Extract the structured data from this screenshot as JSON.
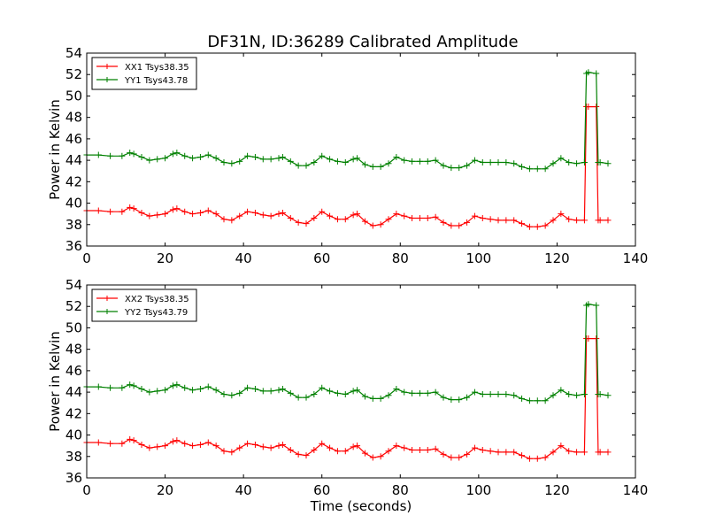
{
  "title": "DF31N, ID:36289 Calibrated Amplitude",
  "colors": {
    "XX": "#ff0000",
    "YY": "#008000",
    "axis": "#000000",
    "background": "#ffffff"
  },
  "chart_data": [
    {
      "type": "line",
      "panel": "top",
      "xlabel": "",
      "ylabel": "Power in Kelvin",
      "xlim": [
        0,
        140
      ],
      "ylim": [
        36,
        54
      ],
      "xticks": [
        0,
        20,
        40,
        60,
        80,
        100,
        120,
        140
      ],
      "yticks": [
        36,
        38,
        40,
        42,
        44,
        46,
        48,
        50,
        52,
        54
      ],
      "grid": false,
      "legend": "top-left",
      "marker": "+",
      "series": [
        {
          "name": "XX1 Tsys38.35",
          "color": "#ff0000",
          "x": [
            0,
            3,
            6,
            9,
            11,
            12,
            14,
            16,
            18,
            20,
            22,
            23,
            25,
            27,
            29,
            31,
            33,
            35,
            37,
            39,
            41,
            43,
            45,
            47,
            49,
            50,
            52,
            54,
            56,
            58,
            60,
            62,
            64,
            66,
            68,
            69,
            71,
            73,
            75,
            77,
            79,
            81,
            83,
            85,
            87,
            89,
            91,
            93,
            95,
            97,
            99,
            101,
            103,
            105,
            107,
            109,
            111,
            113,
            115,
            117,
            119,
            121,
            123,
            125,
            127,
            127.5,
            128,
            130,
            130.5,
            131,
            133
          ],
          "y": [
            39.3,
            39.3,
            39.2,
            39.2,
            39.6,
            39.5,
            39.1,
            38.8,
            38.9,
            39.0,
            39.4,
            39.5,
            39.2,
            39.0,
            39.1,
            39.3,
            39.0,
            38.5,
            38.4,
            38.8,
            39.2,
            39.1,
            38.9,
            38.8,
            39.0,
            39.1,
            38.6,
            38.2,
            38.1,
            38.6,
            39.2,
            38.8,
            38.5,
            38.5,
            38.9,
            39.0,
            38.3,
            37.9,
            38.0,
            38.5,
            39.0,
            38.8,
            38.6,
            38.6,
            38.6,
            38.7,
            38.2,
            37.9,
            37.9,
            38.2,
            38.8,
            38.6,
            38.5,
            38.4,
            38.4,
            38.4,
            38.1,
            37.8,
            37.8,
            37.9,
            38.4,
            39.0,
            38.5,
            38.4,
            38.4,
            49.0,
            49.0,
            49.0,
            38.4,
            38.4,
            38.4
          ]
        },
        {
          "name": "YY1 Tsys43.78",
          "color": "#008000",
          "x": [
            0,
            3,
            6,
            9,
            11,
            12,
            14,
            16,
            18,
            20,
            22,
            23,
            25,
            27,
            29,
            31,
            33,
            35,
            37,
            39,
            41,
            43,
            45,
            47,
            49,
            50,
            52,
            54,
            56,
            58,
            60,
            62,
            64,
            66,
            68,
            69,
            71,
            73,
            75,
            77,
            79,
            81,
            83,
            85,
            87,
            89,
            91,
            93,
            95,
            97,
            99,
            101,
            103,
            105,
            107,
            109,
            111,
            113,
            115,
            117,
            119,
            121,
            123,
            125,
            127,
            127.5,
            128,
            130,
            130.5,
            131,
            133
          ],
          "y": [
            44.5,
            44.5,
            44.4,
            44.4,
            44.7,
            44.6,
            44.3,
            44.0,
            44.1,
            44.2,
            44.6,
            44.7,
            44.4,
            44.2,
            44.3,
            44.5,
            44.2,
            43.8,
            43.7,
            43.9,
            44.4,
            44.3,
            44.1,
            44.1,
            44.2,
            44.3,
            43.9,
            43.5,
            43.5,
            43.8,
            44.4,
            44.1,
            43.9,
            43.8,
            44.1,
            44.2,
            43.6,
            43.4,
            43.4,
            43.7,
            44.3,
            44.0,
            43.9,
            43.9,
            43.9,
            44.0,
            43.5,
            43.3,
            43.3,
            43.5,
            44.0,
            43.8,
            43.8,
            43.8,
            43.8,
            43.7,
            43.4,
            43.2,
            43.2,
            43.2,
            43.7,
            44.2,
            43.8,
            43.7,
            43.8,
            52.1,
            52.2,
            52.1,
            43.8,
            43.8,
            43.7
          ]
        }
      ]
    },
    {
      "type": "line",
      "panel": "bottom",
      "xlabel": "Time (seconds)",
      "ylabel": "Power in Kelvin",
      "xlim": [
        0,
        140
      ],
      "ylim": [
        36,
        54
      ],
      "xticks": [
        0,
        20,
        40,
        60,
        80,
        100,
        120,
        140
      ],
      "yticks": [
        36,
        38,
        40,
        42,
        44,
        46,
        48,
        50,
        52,
        54
      ],
      "grid": false,
      "legend": "top-left",
      "marker": "+",
      "series": [
        {
          "name": "XX2 Tsys38.35",
          "color": "#ff0000",
          "x": [
            0,
            3,
            6,
            9,
            11,
            12,
            14,
            16,
            18,
            20,
            22,
            23,
            25,
            27,
            29,
            31,
            33,
            35,
            37,
            39,
            41,
            43,
            45,
            47,
            49,
            50,
            52,
            54,
            56,
            58,
            60,
            62,
            64,
            66,
            68,
            69,
            71,
            73,
            75,
            77,
            79,
            81,
            83,
            85,
            87,
            89,
            91,
            93,
            95,
            97,
            99,
            101,
            103,
            105,
            107,
            109,
            111,
            113,
            115,
            117,
            119,
            121,
            123,
            125,
            127,
            127.5,
            128,
            130,
            130.5,
            131,
            133
          ],
          "y": [
            39.3,
            39.3,
            39.2,
            39.2,
            39.6,
            39.5,
            39.1,
            38.8,
            38.9,
            39.0,
            39.4,
            39.5,
            39.2,
            39.0,
            39.1,
            39.3,
            39.0,
            38.5,
            38.4,
            38.8,
            39.2,
            39.1,
            38.9,
            38.8,
            39.0,
            39.1,
            38.6,
            38.2,
            38.1,
            38.6,
            39.2,
            38.8,
            38.5,
            38.5,
            38.9,
            39.0,
            38.3,
            37.9,
            38.0,
            38.5,
            39.0,
            38.8,
            38.6,
            38.6,
            38.6,
            38.7,
            38.2,
            37.9,
            37.9,
            38.2,
            38.8,
            38.6,
            38.5,
            38.4,
            38.4,
            38.4,
            38.1,
            37.8,
            37.8,
            37.9,
            38.4,
            39.0,
            38.5,
            38.4,
            38.4,
            49.0,
            49.0,
            49.0,
            38.4,
            38.4,
            38.4
          ]
        },
        {
          "name": "YY2 Tsys43.79",
          "color": "#008000",
          "x": [
            0,
            3,
            6,
            9,
            11,
            12,
            14,
            16,
            18,
            20,
            22,
            23,
            25,
            27,
            29,
            31,
            33,
            35,
            37,
            39,
            41,
            43,
            45,
            47,
            49,
            50,
            52,
            54,
            56,
            58,
            60,
            62,
            64,
            66,
            68,
            69,
            71,
            73,
            75,
            77,
            79,
            81,
            83,
            85,
            87,
            89,
            91,
            93,
            95,
            97,
            99,
            101,
            103,
            105,
            107,
            109,
            111,
            113,
            115,
            117,
            119,
            121,
            123,
            125,
            127,
            127.5,
            128,
            130,
            130.5,
            131,
            133
          ],
          "y": [
            44.5,
            44.5,
            44.4,
            44.4,
            44.7,
            44.6,
            44.3,
            44.0,
            44.1,
            44.2,
            44.6,
            44.7,
            44.4,
            44.2,
            44.3,
            44.5,
            44.2,
            43.8,
            43.7,
            43.9,
            44.4,
            44.3,
            44.1,
            44.1,
            44.2,
            44.3,
            43.9,
            43.5,
            43.5,
            43.8,
            44.4,
            44.1,
            43.9,
            43.8,
            44.1,
            44.2,
            43.6,
            43.4,
            43.4,
            43.7,
            44.3,
            44.0,
            43.9,
            43.9,
            43.9,
            44.0,
            43.5,
            43.3,
            43.3,
            43.5,
            44.0,
            43.8,
            43.8,
            43.8,
            43.8,
            43.7,
            43.4,
            43.2,
            43.2,
            43.2,
            43.7,
            44.2,
            43.8,
            43.7,
            43.8,
            52.1,
            52.2,
            52.1,
            43.8,
            43.8,
            43.7
          ]
        }
      ]
    }
  ]
}
